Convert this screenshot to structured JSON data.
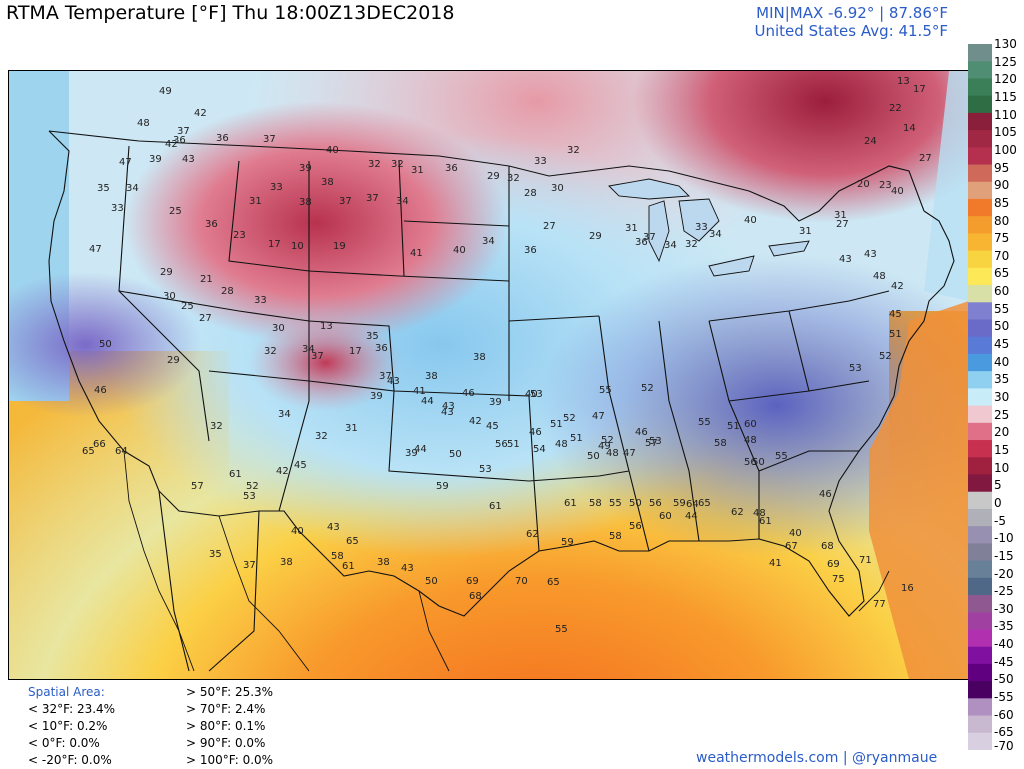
{
  "header": {
    "title": "RTMA Temperature [°F]  Thu 18:00Z13DEC2018",
    "minmax": "MIN|MAX -6.92°  |  87.86°F",
    "avg": "United States Avg: 41.5°F"
  },
  "colorbar": {
    "labels": [
      "130",
      "125",
      "120",
      "115",
      "110",
      "105",
      "100",
      "95",
      "90",
      "85",
      "80",
      "75",
      "70",
      "65",
      "60",
      "55",
      "50",
      "45",
      "40",
      "35",
      "30",
      "25",
      "20",
      "15",
      "10",
      "5",
      "0",
      "-5",
      "-10",
      "-15",
      "-20",
      "-25",
      "-30",
      "-35",
      "-40",
      "-45",
      "-50",
      "-55",
      "-60",
      "-65",
      "-70"
    ],
    "colors": [
      "#708f8c",
      "#4f8e72",
      "#3b7f58",
      "#2f6d44",
      "#8a1f3c",
      "#a02844",
      "#b4304e",
      "#cf6a5a",
      "#e0a07a",
      "#f07a2a",
      "#f49c2c",
      "#f7b532",
      "#f8d440",
      "#fde858",
      "#d8e0a8",
      "#8080d0",
      "#6a6ac8",
      "#5a7ad8",
      "#4a9ae0",
      "#8fd0f0",
      "#c8ecf8",
      "#f0c8d0",
      "#e07088",
      "#c83050",
      "#a02040",
      "#801840",
      "#c8c8c8",
      "#b0b0b8",
      "#9890b0",
      "#808098",
      "#688098",
      "#506888",
      "#905890",
      "#a040a0",
      "#b030b0",
      "#8010a0",
      "#600080",
      "#4a0060",
      "#b090c0",
      "#c8b8d0",
      "#d8d0e0"
    ],
    "icon": "colorbar-legend-icon"
  },
  "stats": {
    "heading": "Spatial Area:",
    "left": [
      "< 32°F: 23.4%",
      "< 10°F: 0.2%",
      "< 0°F: 0.0%",
      "< -20°F: 0.0%"
    ],
    "right": [
      "> 50°F: 25.3%",
      "> 70°F: 2.4%",
      "> 80°F: 0.1%",
      "> 90°F: 0.0%",
      "> 100°F: 0.0%"
    ]
  },
  "credit": "weathermodels.com | @ryanmaue",
  "map_icon": "temperature-map-icon",
  "station_values": [
    {
      "v": "49"
    },
    {
      "v": "42"
    },
    {
      "v": "37"
    },
    {
      "v": "36"
    },
    {
      "v": "36"
    },
    {
      "v": "37"
    },
    {
      "v": "48"
    },
    {
      "v": "42"
    },
    {
      "v": "47"
    },
    {
      "v": "39"
    },
    {
      "v": "43"
    },
    {
      "v": "40"
    },
    {
      "v": "32"
    },
    {
      "v": "32"
    },
    {
      "v": "31"
    },
    {
      "v": "36"
    },
    {
      "v": "29"
    },
    {
      "v": "32"
    },
    {
      "v": "33"
    },
    {
      "v": "32"
    },
    {
      "v": "35"
    },
    {
      "v": "34"
    },
    {
      "v": "33"
    },
    {
      "v": "39"
    },
    {
      "v": "38"
    },
    {
      "v": "33"
    },
    {
      "v": "31"
    },
    {
      "v": "38"
    },
    {
      "v": "37"
    },
    {
      "v": "37"
    },
    {
      "v": "34"
    },
    {
      "v": "28"
    },
    {
      "v": "30"
    },
    {
      "v": "25"
    },
    {
      "v": "36"
    },
    {
      "v": "23"
    },
    {
      "v": "17"
    },
    {
      "v": "10"
    },
    {
      "v": "19"
    },
    {
      "v": "41"
    },
    {
      "v": "40"
    },
    {
      "v": "34"
    },
    {
      "v": "36"
    },
    {
      "v": "27"
    },
    {
      "v": "29"
    },
    {
      "v": "31"
    },
    {
      "v": "36"
    },
    {
      "v": "37"
    },
    {
      "v": "34"
    },
    {
      "v": "32"
    },
    {
      "v": "34"
    },
    {
      "v": "33"
    },
    {
      "v": "40"
    },
    {
      "v": "31"
    },
    {
      "v": "43"
    },
    {
      "v": "47"
    },
    {
      "v": "29"
    },
    {
      "v": "21"
    },
    {
      "v": "28"
    },
    {
      "v": "33"
    },
    {
      "v": "30"
    },
    {
      "v": "25"
    },
    {
      "v": "27"
    },
    {
      "v": "32"
    },
    {
      "v": "37"
    },
    {
      "v": "35"
    },
    {
      "v": "36"
    },
    {
      "v": "50"
    },
    {
      "v": "46"
    },
    {
      "v": "30"
    },
    {
      "v": "34"
    },
    {
      "v": "13"
    },
    {
      "v": "17"
    },
    {
      "v": "39"
    },
    {
      "v": "37"
    },
    {
      "v": "38"
    },
    {
      "v": "38"
    },
    {
      "v": "39"
    },
    {
      "v": "40"
    },
    {
      "v": "43"
    },
    {
      "v": "42"
    },
    {
      "v": "45"
    },
    {
      "v": "46"
    },
    {
      "v": "51"
    },
    {
      "v": "52"
    },
    {
      "v": "47"
    },
    {
      "v": "50"
    },
    {
      "v": "48"
    },
    {
      "v": "47"
    },
    {
      "v": "46"
    },
    {
      "v": "53"
    },
    {
      "v": "51"
    },
    {
      "v": "55"
    },
    {
      "v": "52"
    },
    {
      "v": "29"
    },
    {
      "v": "32"
    },
    {
      "v": "34"
    },
    {
      "v": "32"
    },
    {
      "v": "31"
    },
    {
      "v": "43"
    },
    {
      "v": "41"
    },
    {
      "v": "44"
    },
    {
      "v": "43"
    },
    {
      "v": "46"
    },
    {
      "v": "52"
    },
    {
      "v": "48"
    },
    {
      "v": "49"
    },
    {
      "v": "53"
    },
    {
      "v": "57"
    },
    {
      "v": "55"
    },
    {
      "v": "51"
    },
    {
      "v": "60"
    },
    {
      "v": "58"
    },
    {
      "v": "56"
    },
    {
      "v": "50"
    },
    {
      "v": "48"
    },
    {
      "v": "55"
    },
    {
      "v": "66"
    },
    {
      "v": "65"
    },
    {
      "v": "64"
    },
    {
      "v": "57"
    },
    {
      "v": "61"
    },
    {
      "v": "52"
    },
    {
      "v": "53"
    },
    {
      "v": "35"
    },
    {
      "v": "37"
    },
    {
      "v": "45"
    },
    {
      "v": "42"
    },
    {
      "v": "44"
    },
    {
      "v": "39"
    },
    {
      "v": "50"
    },
    {
      "v": "53"
    },
    {
      "v": "56"
    },
    {
      "v": "51"
    },
    {
      "v": "54"
    },
    {
      "v": "61"
    },
    {
      "v": "58"
    },
    {
      "v": "55"
    },
    {
      "v": "50"
    },
    {
      "v": "56"
    },
    {
      "v": "59"
    },
    {
      "v": "65"
    },
    {
      "v": "44"
    },
    {
      "v": "48"
    },
    {
      "v": "46"
    },
    {
      "v": "41"
    },
    {
      "v": "40"
    },
    {
      "v": "38"
    },
    {
      "v": "40"
    },
    {
      "v": "43"
    },
    {
      "v": "65"
    },
    {
      "v": "61"
    },
    {
      "v": "58"
    },
    {
      "v": "59"
    },
    {
      "v": "61"
    },
    {
      "v": "62"
    },
    {
      "v": "59"
    },
    {
      "v": "58"
    },
    {
      "v": "56"
    },
    {
      "v": "60"
    },
    {
      "v": "64"
    },
    {
      "v": "62"
    },
    {
      "v": "61"
    },
    {
      "v": "67"
    },
    {
      "v": "68"
    },
    {
      "v": "69"
    },
    {
      "v": "71"
    },
    {
      "v": "38"
    },
    {
      "v": "43"
    },
    {
      "v": "50"
    },
    {
      "v": "69"
    },
    {
      "v": "68"
    },
    {
      "v": "70"
    },
    {
      "v": "65"
    },
    {
      "v": "55"
    },
    {
      "v": "75"
    },
    {
      "v": "77"
    },
    {
      "v": "16"
    },
    {
      "v": "13"
    },
    {
      "v": "17"
    },
    {
      "v": "22"
    },
    {
      "v": "14"
    },
    {
      "v": "24"
    },
    {
      "v": "27"
    },
    {
      "v": "20"
    },
    {
      "v": "23"
    },
    {
      "v": "40"
    },
    {
      "v": "31"
    },
    {
      "v": "27"
    },
    {
      "v": "43"
    },
    {
      "v": "48"
    },
    {
      "v": "42"
    },
    {
      "v": "45"
    },
    {
      "v": "51"
    },
    {
      "v": "52"
    },
    {
      "v": "53"
    }
  ]
}
